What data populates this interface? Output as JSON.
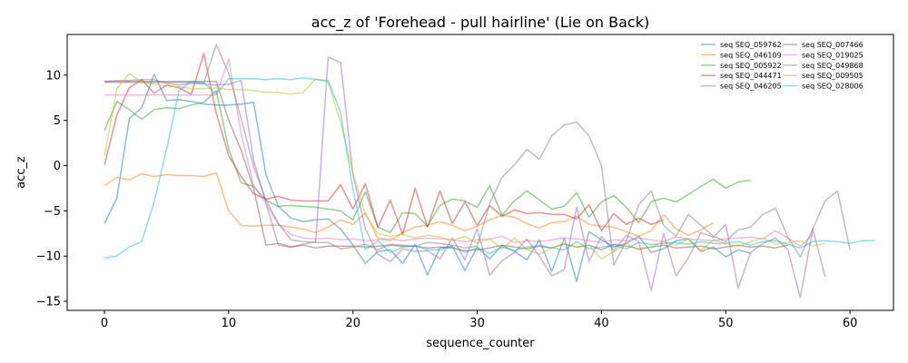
{
  "chart_data": {
    "type": "line",
    "title": "acc_z of 'Forehead - pull hairline' (Lie on Back)",
    "xlabel": "sequence_counter",
    "ylabel": "acc_z",
    "xlim": [
      -3,
      63.5
    ],
    "ylim": [
      -16,
      14.5
    ],
    "xticks": [
      0,
      10,
      20,
      30,
      40,
      50,
      60
    ],
    "yticks": [
      -15,
      -10,
      -5,
      0,
      5,
      10
    ],
    "grid": false,
    "legend_position": "top-right",
    "series": [
      {
        "name": "seq SEQ_059762",
        "color": "#1f77b4",
        "values": [
          -6.4,
          -3.6,
          5.2,
          6.4,
          10.1,
          7.2,
          7.3,
          7.1,
          6.8,
          6.7,
          6.7,
          6.8,
          7.0,
          -1.0,
          -4.5,
          -5.8,
          -6.2,
          -6.0,
          -5.9,
          -7.0,
          -8.8,
          -10.8,
          -9.5,
          -9.3,
          -10.8,
          -8.7,
          -12.1,
          -9.1,
          -8.9,
          -11.6,
          -9.0,
          -10.3,
          -8.8,
          -9.5,
          -10.4,
          -8.2,
          -11.7,
          -8.0,
          -12.8,
          -7.3,
          -8.2,
          -9.0,
          -8.6,
          -7.8,
          -9.6,
          -9.2,
          -8.3,
          -8.1,
          -9.5,
          -9.0,
          -10.1,
          -9.3,
          -9.7
        ]
      },
      {
        "name": "seq SEQ_046109",
        "color": "#ff7f0e",
        "values": [
          -2.2,
          -1.3,
          -1.6,
          -0.9,
          -1.2,
          -1.0,
          -1.1,
          -1.1,
          -1.2,
          -0.8,
          -5.0,
          -6.6,
          -6.7,
          -6.6,
          -6.6,
          -6.8,
          -7.0,
          -7.4,
          -6.8,
          -6.0,
          -6.5,
          -5.2,
          -8.0,
          -8.3,
          -7.4,
          -6.8,
          -6.6,
          -6.2,
          -6.6,
          -7.2,
          -6.7,
          -6.0,
          -5.5,
          -5.7,
          -6.4,
          -6.9,
          -6.3,
          -6.2,
          -5.6,
          -6.5,
          -6.7,
          -6.8,
          -7.3,
          -7.8,
          -7.2,
          -5.4,
          -7.0,
          -7.7,
          -7.1,
          -6.3
        ]
      },
      {
        "name": "seq SEQ_005922",
        "color": "#2ca02c",
        "values": [
          3.9,
          7.1,
          6.2,
          5.1,
          6.2,
          6.4,
          6.3,
          6.7,
          7.0,
          8.3,
          1.8,
          -1.9,
          -2.3,
          -3.8,
          -4.5,
          -4.4,
          -4.5,
          -4.6,
          -4.8,
          -5.0,
          -6.0,
          -2.9,
          -6.8,
          -7.4,
          -5.2,
          -5.3,
          -6.7,
          -4.4,
          -3.7,
          -3.9,
          -4.6,
          -2.2,
          -5.5,
          -3.9,
          -2.8,
          -3.8,
          -4.8,
          -4.5,
          -3.0,
          -5.7,
          -4.0,
          -3.3,
          -4.6,
          -6.3,
          -4.0,
          -3.6,
          -4.0,
          -3.2,
          -2.3,
          -1.5,
          -2.5,
          -1.8,
          -1.6
        ]
      },
      {
        "name": "seq SEQ_044471",
        "color": "#d62728",
        "values": [
          0.1,
          5.6,
          8.6,
          9.5,
          8.0,
          8.9,
          8.6,
          7.9,
          12.4,
          5.8,
          1.1,
          -1.2,
          -3.1,
          -3.7,
          -3.4,
          -3.8,
          -3.9,
          -3.9,
          -3.9,
          -2.1,
          -4.8,
          -2.0,
          -6.8,
          -3.8,
          -7.6,
          -2.5,
          -6.8,
          -2.8,
          -6.4,
          -4.0,
          -6.6,
          -4.4,
          -5.6,
          -4.9,
          -5.3,
          -5.2,
          -5.4,
          -5.4,
          -5.9,
          -4.3,
          -7.2,
          -5.3,
          -6.5,
          -5.8,
          -6.5,
          -6.0
        ]
      },
      {
        "name": "seq SEQ_046205",
        "color": "#9467bd",
        "values": [
          9.3,
          9.4,
          9.4,
          9.5,
          9.5,
          9.1,
          8.9,
          9.1,
          9.0,
          8.9,
          9.0,
          9.4,
          0.6,
          -4.1,
          -8.8,
          -9.0,
          -8.7,
          -8.4,
          12.0,
          11.4,
          -1.0,
          -7.0,
          -9.8,
          -10.6,
          -9.2,
          -9.5,
          -9.4,
          -10.3,
          -8.0,
          -10.4,
          -7.0,
          -12.1,
          -10.5,
          -9.6,
          -8.1,
          -10.0,
          -12.2,
          -11.5,
          -4.6,
          -10.6,
          -7.8,
          -9.4,
          -7.7,
          -8.4,
          -13.8,
          -7.5,
          -12.2,
          -10.2,
          -7.4,
          -7.9,
          -6.5,
          -13.5,
          -9.6,
          -8.6,
          -8.0,
          -9.3,
          -14.6,
          -7.0,
          -12.3
        ]
      },
      {
        "name": "seq SEQ_007466",
        "color": "#8c564b",
        "values": [
          9.3,
          9.3,
          9.3,
          9.3,
          9.3,
          9.3,
          9.3,
          9.3,
          9.3,
          9.3,
          5.0,
          1.7,
          -2.5,
          -8.8,
          -8.6,
          -9.0,
          -8.8,
          -9.1,
          -8.9,
          -8.9,
          -8.9,
          -9.0,
          -8.9,
          -8.8,
          -8.9,
          -8.9,
          -9.1,
          -9.0,
          -9.1,
          -9.4,
          -9.3,
          -9.1,
          -8.8,
          -9.0,
          -9.2,
          -8.9,
          -9.1,
          -8.7,
          -9.0,
          -8.8,
          -9.3,
          -8.7,
          -8.9,
          -9.2,
          -9.0,
          -8.8,
          -9.1,
          -9.0,
          -8.9,
          -9.2,
          -9.0,
          -8.8,
          -9.0,
          -8.9,
          -9.1,
          -8.8
        ]
      },
      {
        "name": "seq SEQ_019025",
        "color": "#e377c2",
        "values": [
          7.8,
          7.8,
          7.8,
          7.8,
          7.8,
          7.8,
          7.8,
          7.8,
          7.8,
          7.8,
          11.8,
          3.5,
          -2.2,
          -4.2,
          -6.5,
          -7.6,
          -8.0,
          -8.1,
          -8.0,
          -8.2,
          -8.1,
          -8.3,
          -8.2,
          -8.1,
          -8.3,
          -8.1,
          -8.0,
          -8.1,
          -8.2,
          -8.4,
          -8.2,
          -8.1,
          -7.8,
          -8.5,
          -8.3,
          -8.4,
          -8.2,
          -8.0,
          -8.1,
          -8.3,
          -8.5,
          -8.2,
          -8.3,
          -8.0,
          -8.2,
          -8.4,
          -7.9,
          -8.1,
          -8.2,
          -8.3,
          -8.1,
          -8.0,
          -7.9,
          -8.1,
          -7.2,
          -8.0,
          -8.9,
          -7.6
        ]
      },
      {
        "name": "seq SEQ_049868",
        "color": "#7f7f7f",
        "values": [
          9.2,
          9.2,
          9.2,
          9.2,
          9.2,
          9.2,
          9.2,
          9.2,
          9.1,
          13.4,
          10.2,
          5.2,
          -0.1,
          -3.8,
          -6.4,
          -8.2,
          -8.4,
          -8.5,
          -8.5,
          -9.2,
          -9.0,
          -8.7,
          -9.3,
          -8.7,
          -8.8,
          -8.9,
          -8.5,
          -8.6,
          -8.8,
          -9.1,
          -8.9,
          -4.2,
          -1.3,
          0.1,
          1.8,
          0.7,
          3.3,
          4.5,
          4.8,
          3.3,
          0.0,
          -11.0,
          -8.3,
          -4.3,
          -2.8,
          -6.6,
          -7.8,
          -5.4,
          -6.6,
          -7.8,
          -8.4,
          -7.1,
          -6.8,
          -5.4,
          -4.7,
          -7.9,
          -10.1,
          -7.0,
          -3.9,
          -2.8,
          -9.3
        ]
      },
      {
        "name": "seq SEQ_009505",
        "color": "#bcbd22",
        "values": [
          1.1,
          8.5,
          10.2,
          9.2,
          9.0,
          8.8,
          8.7,
          8.5,
          8.5,
          8.6,
          8.4,
          8.4,
          8.3,
          8.1,
          8.1,
          7.9,
          8.1,
          9.6,
          9.2,
          4.8,
          -0.8,
          -5.4,
          -7.5,
          -7.8,
          -7.6,
          -8.0,
          -7.7,
          -7.9,
          -8.3,
          -7.8,
          -8.6,
          -8.1,
          -9.2,
          -8.0,
          -9.3,
          -9.8,
          -9.1,
          -8.6,
          -9.0,
          -8.8,
          -10.3,
          -9.5,
          -8.6,
          -9.3,
          -9.0,
          -8.4,
          -8.8,
          -8.1,
          -9.4,
          -8.2,
          -8.6,
          -8.9,
          -8.4,
          -8.0,
          -8.7,
          -8.5,
          -8.3,
          -8.9,
          -8.6
        ]
      },
      {
        "name": "seq SEQ_028006",
        "color": "#17becf",
        "values": [
          -10.2,
          -10.0,
          -9.0,
          -8.4,
          -4.0,
          1.8,
          8.3,
          9.3,
          9.2,
          7.9,
          9.6,
          9.6,
          9.6,
          9.5,
          9.6,
          9.5,
          9.7,
          9.5,
          9.4,
          5.9,
          -2.6,
          -9.3,
          -8.3,
          -9.6,
          -9.0,
          -8.9,
          -9.3,
          -9.3,
          -9.0,
          -9.6,
          -9.1,
          -9.7,
          -9.0,
          -9.4,
          -9.0,
          -8.8,
          -9.1,
          -9.3,
          -8.4,
          -9.2,
          -9.0,
          -8.8,
          -9.2,
          -8.5,
          -8.7,
          -8.6,
          -8.5,
          -8.7,
          -8.4,
          -8.6,
          -8.6,
          -8.4,
          -8.8,
          -8.4,
          -8.3,
          -8.7,
          -9.1,
          -8.4,
          -8.3,
          -8.4,
          -8.6,
          -8.3,
          -8.3
        ]
      }
    ]
  }
}
